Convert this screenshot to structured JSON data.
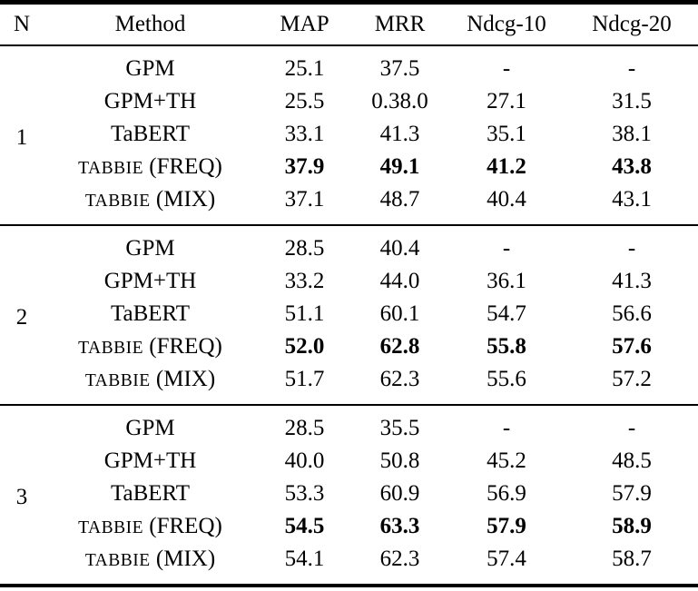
{
  "table": {
    "columns": [
      "N",
      "Method",
      "MAP",
      "MRR",
      "Ndcg-10",
      "Ndcg-20"
    ],
    "text_color": "#000000",
    "background_color": "#ffffff",
    "groups": [
      {
        "n": "1",
        "rows": [
          {
            "method": "GPM",
            "sc": false,
            "bold": false,
            "values": [
              "25.1",
              "37.5",
              "-",
              "-"
            ]
          },
          {
            "method": "GPM+TH",
            "sc": false,
            "bold": false,
            "values": [
              "25.5",
              "0.38.0",
              "27.1",
              "31.5"
            ]
          },
          {
            "method": "TaBERT",
            "sc": false,
            "bold": false,
            "values": [
              "33.1",
              "41.3",
              "35.1",
              "38.1"
            ]
          },
          {
            "method": "TABBIE (FREQ)",
            "sc": true,
            "bold": true,
            "values": [
              "37.9",
              "49.1",
              "41.2",
              "43.8"
            ]
          },
          {
            "method": "TABBIE (MIX)",
            "sc": true,
            "bold": false,
            "values": [
              "37.1",
              "48.7",
              "40.4",
              "43.1"
            ]
          }
        ]
      },
      {
        "n": "2",
        "rows": [
          {
            "method": "GPM",
            "sc": false,
            "bold": false,
            "values": [
              "28.5",
              "40.4",
              "-",
              "-"
            ]
          },
          {
            "method": "GPM+TH",
            "sc": false,
            "bold": false,
            "values": [
              "33.2",
              "44.0",
              "36.1",
              "41.3"
            ]
          },
          {
            "method": "TaBERT",
            "sc": false,
            "bold": false,
            "values": [
              "51.1",
              "60.1",
              "54.7",
              "56.6"
            ]
          },
          {
            "method": "TABBIE (FREQ)",
            "sc": true,
            "bold": true,
            "values": [
              "52.0",
              "62.8",
              "55.8",
              "57.6"
            ]
          },
          {
            "method": "TABBIE (MIX)",
            "sc": true,
            "bold": false,
            "values": [
              "51.7",
              "62.3",
              "55.6",
              "57.2"
            ]
          }
        ]
      },
      {
        "n": "3",
        "rows": [
          {
            "method": "GPM",
            "sc": false,
            "bold": false,
            "values": [
              "28.5",
              "35.5",
              "-",
              "-"
            ]
          },
          {
            "method": "GPM+TH",
            "sc": false,
            "bold": false,
            "values": [
              "40.0",
              "50.8",
              "45.2",
              "48.5"
            ]
          },
          {
            "method": "TaBERT",
            "sc": false,
            "bold": false,
            "values": [
              "53.3",
              "60.9",
              "56.9",
              "57.9"
            ]
          },
          {
            "method": "TABBIE (FREQ)",
            "sc": true,
            "bold": true,
            "values": [
              "54.5",
              "63.3",
              "57.9",
              "58.9"
            ]
          },
          {
            "method": "TABBIE (MIX)",
            "sc": true,
            "bold": false,
            "values": [
              "54.1",
              "62.3",
              "57.4",
              "58.7"
            ]
          }
        ]
      }
    ]
  }
}
